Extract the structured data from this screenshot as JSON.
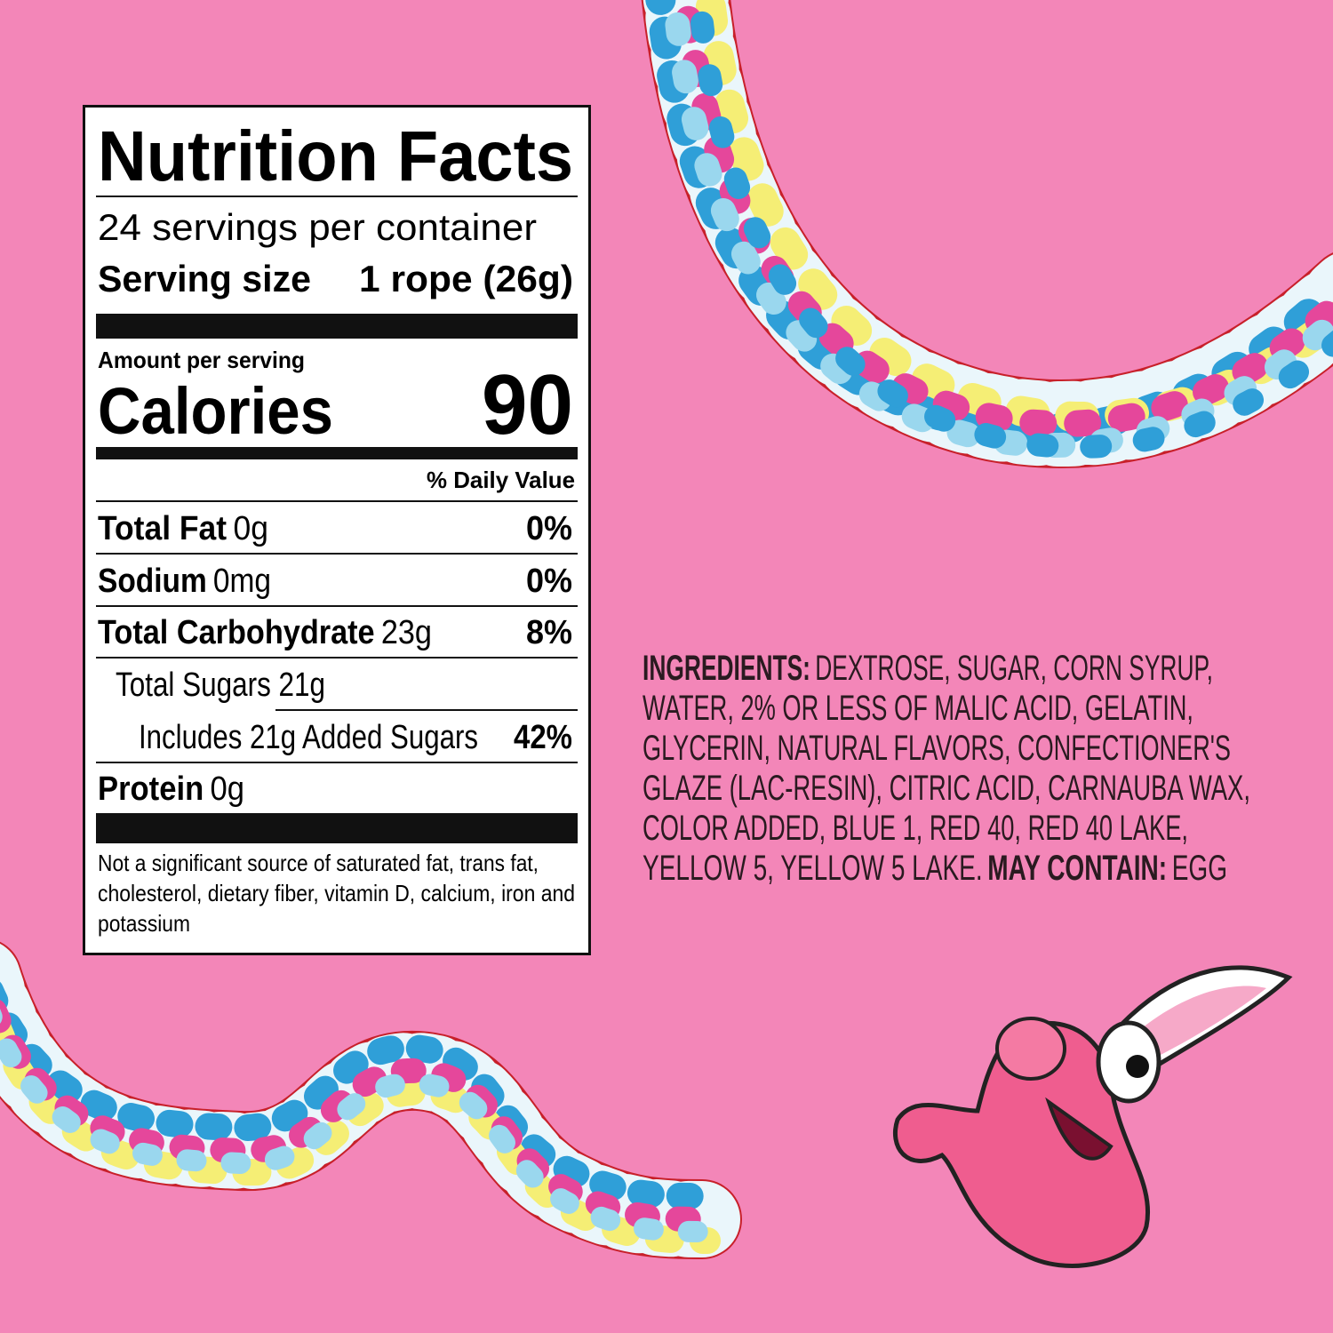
{
  "nutrition_facts": {
    "title": "Nutrition Facts",
    "servings": "24 servings per container",
    "serving_size_label": "Serving size",
    "serving_size_value": "1 rope (26g)",
    "amount_per_serving": "Amount per serving",
    "calories_label": "Calories",
    "calories_value": 90,
    "daily_value_header": "% Daily Value",
    "rows": [
      {
        "name": "Total Fat",
        "amount": "0g",
        "dv": "0%"
      },
      {
        "name": "Sodium",
        "amount": "0mg",
        "dv": "0%"
      },
      {
        "name": "Total Carbohydrate",
        "amount": "23g",
        "dv": "8%"
      },
      {
        "amount": "Total Sugars 21g"
      },
      {
        "amount": "Includes 21g Added Sugars",
        "dv": "42%"
      },
      {
        "name": "Protein",
        "amount": "0g"
      }
    ],
    "footnote": [
      "Not a significant source of saturated fat, trans fat,",
      "cholesterol, dietary fiber, vitamin D, calcium, iron and",
      "potassium"
    ]
  },
  "ingredients": {
    "label": "INGREDIENTS:",
    "lines": [
      "DEXTROSE, SUGAR, CORN SYRUP,",
      "WATER, 2% OR LESS OF MALIC ACID, GELATIN,",
      "GLYCERIN, NATURAL FLAVORS, CONFECTIONER'S",
      "GLAZE (LAC-RESIN), CITRIC ACID, CARNAUBA WAX,",
      "COLOR ADDED, BLUE 1, RED 40, RED 40 LAKE,",
      "YELLOW 5, YELLOW 5 LAKE."
    ],
    "may_contain_label": "MAY CONTAIN:",
    "may_contain": "EGG"
  }
}
